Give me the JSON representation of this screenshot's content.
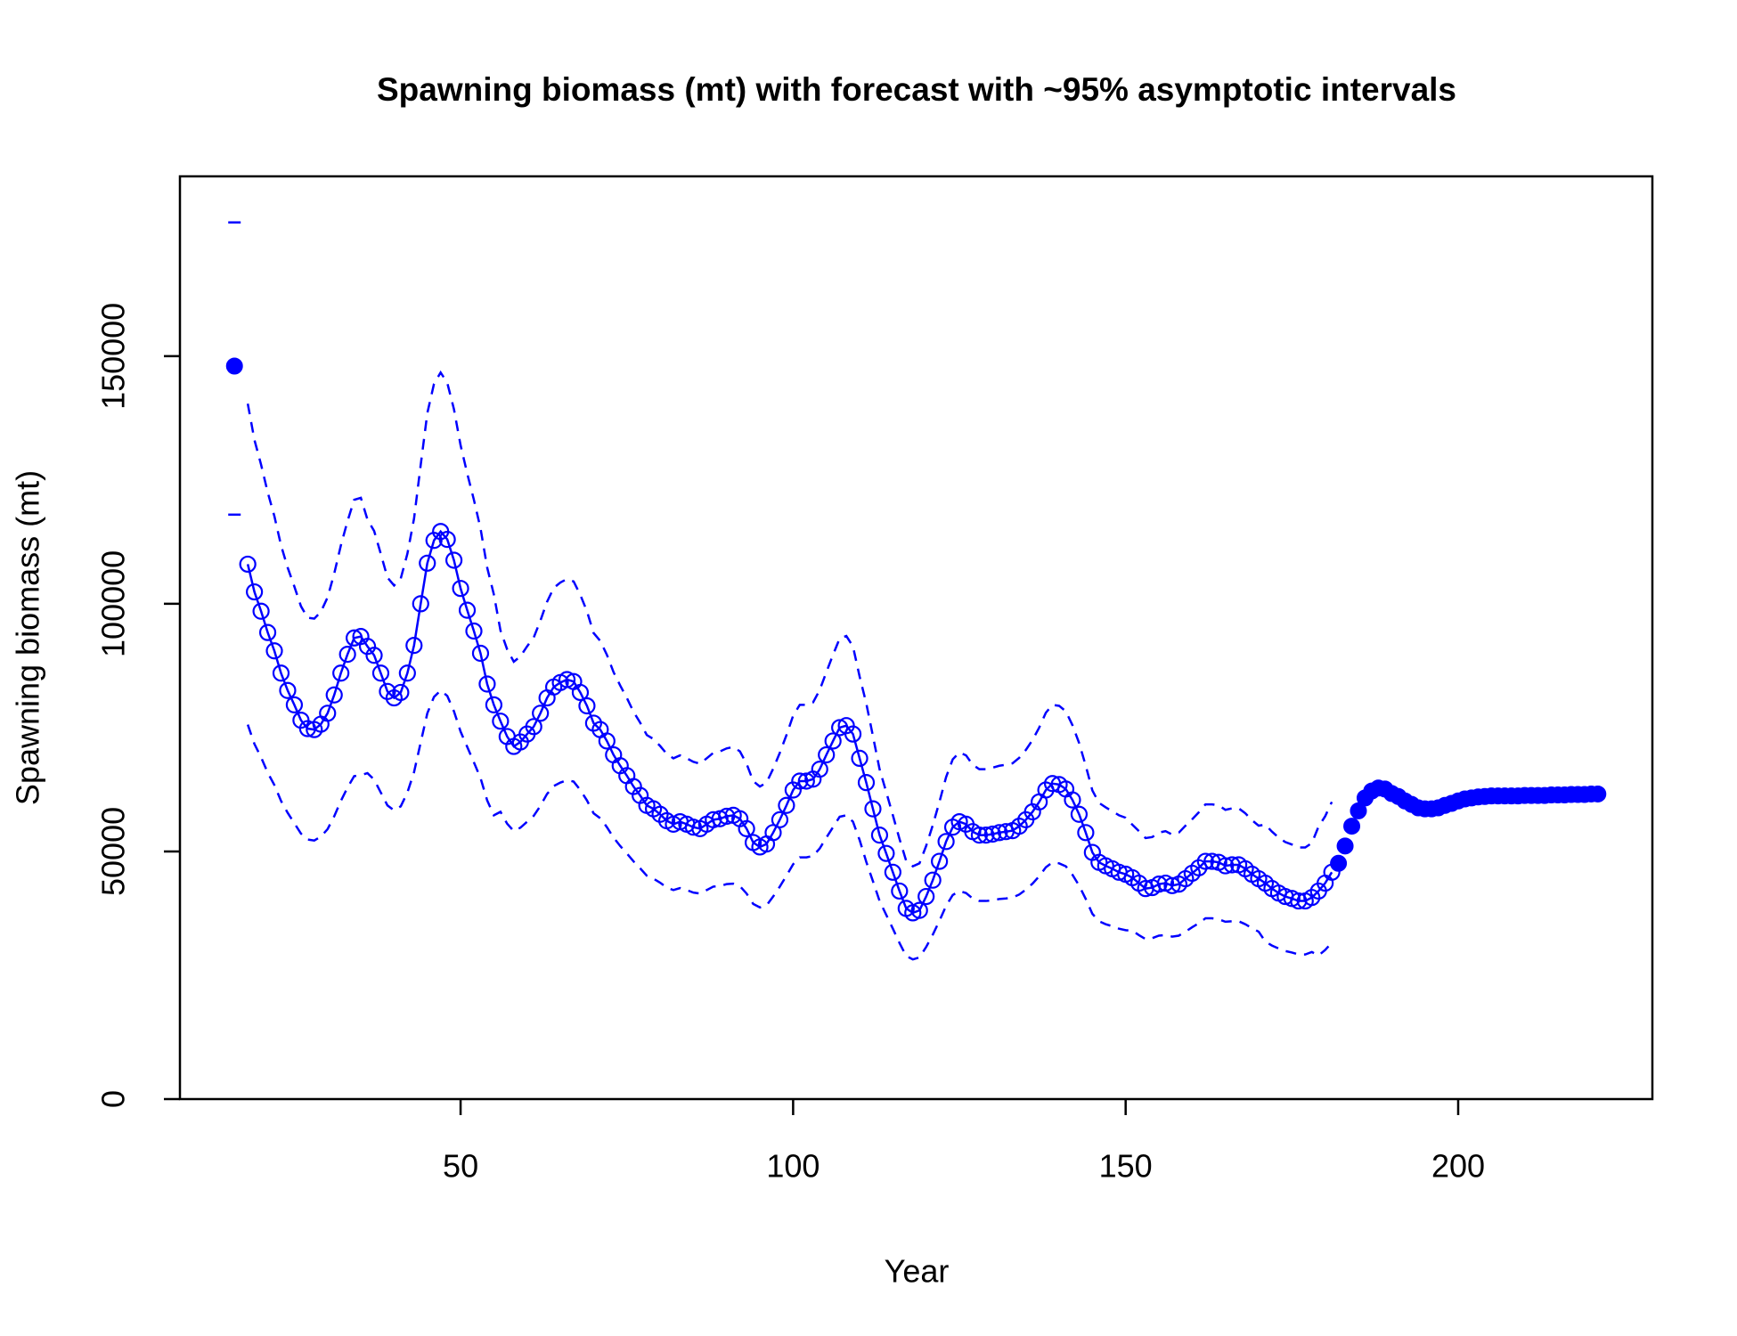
{
  "chart_data": {
    "type": "line",
    "title": "Spawning biomass (mt) with forecast with ~95% asymptotic intervals",
    "xlabel": "Year",
    "ylabel": "Spawning biomass (mt)",
    "xlim": [
      7.8,
      229.2
    ],
    "ylim": [
      0,
      186300
    ],
    "xticks": [
      50,
      100,
      150,
      200
    ],
    "yticks": [
      0,
      50000,
      100000,
      150000
    ],
    "series": [
      {
        "color": "#0000ff",
        "marker": "filled",
        "x": [
          16
        ],
        "values": [
          148000
        ],
        "upper": [
          177000
        ],
        "lower": [
          118000
        ]
      },
      {
        "color": "#0000ff",
        "marker": "open",
        "line": true,
        "x": [
          18,
          19,
          20,
          21,
          22,
          23,
          24,
          25,
          26,
          27,
          28,
          29,
          30,
          31,
          32,
          33,
          34,
          35,
          36,
          37,
          38,
          39,
          40,
          41,
          42,
          43,
          44,
          45,
          46,
          47,
          48,
          49,
          50,
          51,
          52,
          53,
          54,
          55,
          56,
          57,
          58,
          59,
          60,
          61,
          62,
          63,
          64,
          65,
          66,
          67,
          68,
          69,
          70,
          71,
          72,
          73,
          74,
          75,
          76,
          77,
          78,
          79,
          80,
          81,
          82,
          83,
          84,
          85,
          86,
          87,
          88,
          89,
          90,
          91,
          92,
          93,
          94,
          95,
          96,
          97,
          98,
          99,
          100,
          101,
          102,
          103,
          104,
          105,
          106,
          107,
          108,
          109,
          110,
          111,
          112,
          113,
          114,
          115,
          116,
          117,
          118,
          119,
          120,
          121,
          122,
          123,
          124,
          125,
          126,
          127,
          128,
          129,
          130,
          131,
          132,
          133,
          134,
          135,
          136,
          137,
          138,
          139,
          140,
          141,
          142,
          143,
          144,
          145,
          146,
          147,
          148,
          149,
          150,
          151,
          152,
          153,
          154,
          155,
          156,
          157,
          158,
          159,
          160,
          161,
          162,
          163,
          164,
          165,
          166,
          167,
          168,
          169,
          170,
          171,
          172,
          173,
          174,
          175,
          176,
          177,
          178,
          179,
          180,
          181
        ],
        "values": [
          108000,
          102400,
          98500,
          94200,
          90500,
          86000,
          82500,
          79600,
          76500,
          74800,
          74600,
          75700,
          77900,
          81600,
          86000,
          89800,
          93100,
          93400,
          91400,
          89600,
          86000,
          82300,
          81000,
          82100,
          86000,
          91600,
          100000,
          108200,
          112800,
          114600,
          113000,
          108800,
          103100,
          98700,
          94500,
          90000,
          83800,
          79600,
          76300,
          73200,
          71200,
          72100,
          73700,
          75200,
          77900,
          81000,
          83200,
          84100,
          84700,
          84300,
          82100,
          79400,
          75900,
          74600,
          72300,
          69500,
          67300,
          65300,
          63100,
          61300,
          59300,
          58600,
          57500,
          56200,
          55500,
          56000,
          55500,
          54900,
          54600,
          55500,
          56400,
          56600,
          57100,
          57300,
          56600,
          54600,
          51800,
          50900,
          51500,
          53800,
          56400,
          59300,
          62400,
          64200,
          64200,
          64600,
          66600,
          69500,
          72300,
          75000,
          75400,
          73700,
          68800,
          63900,
          58600,
          53300,
          49600,
          45800,
          42000,
          38500,
          37600,
          38100,
          40900,
          44200,
          48000,
          52000,
          54900,
          56000,
          55500,
          54000,
          53300,
          53300,
          53500,
          53800,
          54000,
          54200,
          55100,
          56400,
          58000,
          60000,
          62400,
          63700,
          63500,
          62600,
          60400,
          57500,
          53800,
          49800,
          47800,
          47100,
          46500,
          45800,
          45400,
          44700,
          43600,
          42500,
          42700,
          43400,
          43600,
          43100,
          43400,
          44500,
          45600,
          46700,
          48000,
          48000,
          47800,
          47100,
          47300,
          47300,
          46500,
          45400,
          44500,
          43600,
          42500,
          41600,
          40900,
          40500,
          40000,
          40000,
          40700,
          42000,
          43600,
          45800
        ],
        "upper": [
          140400,
          133100,
          128100,
          122500,
          117700,
          111800,
          107300,
          103500,
          99500,
          97200,
          97000,
          98400,
          101300,
          106100,
          111800,
          116700,
          121000,
          121400,
          117000,
          114700,
          110100,
          105300,
          103700,
          105100,
          110100,
          117200,
          128000,
          138500,
          144400,
          146700,
          144600,
          139300,
          132000,
          126300,
          121000,
          115200,
          107300,
          101900,
          94600,
          90800,
          88300,
          89400,
          91400,
          93200,
          96600,
          100400,
          103200,
          104300,
          105000,
          104500,
          101800,
          98500,
          94100,
          92500,
          89700,
          86200,
          83500,
          81000,
          78200,
          76000,
          73500,
          72700,
          71300,
          69700,
          68800,
          69400,
          68800,
          68100,
          67700,
          68800,
          69900,
          70200,
          70800,
          71100,
          70200,
          67700,
          64200,
          63100,
          63900,
          66700,
          69900,
          73500,
          77400,
          79600,
          79600,
          80100,
          82600,
          86200,
          89700,
          93000,
          93500,
          91400,
          85300,
          79900,
          73300,
          66600,
          62000,
          57300,
          52500,
          48100,
          47000,
          47600,
          51100,
          55300,
          60000,
          65000,
          68600,
          70000,
          69400,
          67500,
          66600,
          66600,
          66900,
          67300,
          67500,
          67800,
          68900,
          70500,
          72500,
          75000,
          78000,
          79600,
          79400,
          78300,
          75500,
          71900,
          67300,
          62300,
          59800,
          58900,
          58100,
          57300,
          56800,
          55400,
          54100,
          52700,
          52900,
          53800,
          54100,
          53400,
          53800,
          55200,
          56500,
          57900,
          59500,
          59500,
          59300,
          58400,
          58700,
          58700,
          57700,
          56300,
          55200,
          55400,
          54000,
          52800,
          51900,
          51400,
          50800,
          50800,
          51700,
          55000,
          57100,
          60000
        ],
        "lower": [
          75600,
          71700,
          69000,
          65900,
          63400,
          60200,
          57800,
          55700,
          53600,
          52400,
          52200,
          53000,
          54500,
          57100,
          60200,
          62900,
          65200,
          65400,
          65800,
          64500,
          61900,
          59300,
          58300,
          59100,
          61900,
          66000,
          72000,
          77900,
          81200,
          82500,
          81400,
          78300,
          74200,
          71100,
          68000,
          64800,
          60300,
          57300,
          58000,
          55600,
          54100,
          54800,
          56000,
          57200,
          59200,
          61600,
          63200,
          63900,
          64400,
          64100,
          62400,
          60300,
          57700,
          56700,
          54900,
          52800,
          51100,
          49600,
          48000,
          46600,
          45100,
          44500,
          43700,
          42700,
          42200,
          42600,
          42200,
          41700,
          41500,
          42200,
          42900,
          43000,
          43400,
          43500,
          43000,
          41500,
          39400,
          38700,
          39100,
          40900,
          42900,
          45100,
          47400,
          48800,
          48800,
          49100,
          50600,
          52800,
          54900,
          57000,
          57300,
          56000,
          52300,
          47900,
          44000,
          40000,
          37200,
          34400,
          31500,
          28900,
          28200,
          28600,
          30700,
          33200,
          36000,
          39000,
          41200,
          42000,
          41600,
          40500,
          40000,
          40000,
          40100,
          40400,
          40500,
          40700,
          41300,
          42300,
          43500,
          45000,
          46800,
          47800,
          47600,
          47000,
          45300,
          43100,
          40400,
          37400,
          35900,
          35300,
          34900,
          34400,
          34100,
          34000,
          33100,
          32300,
          32500,
          33000,
          33100,
          32800,
          33000,
          33800,
          34700,
          35500,
          36500,
          36500,
          36300,
          35800,
          35900,
          35900,
          35300,
          34500,
          33800,
          31800,
          31000,
          30400,
          29900,
          29600,
          29200,
          29200,
          29700,
          29000,
          30100,
          31600
        ]
      },
      {
        "color": "#0000ff",
        "marker": "filled",
        "x": [
          182,
          183,
          184,
          185,
          186,
          187,
          188,
          189,
          190,
          191,
          192,
          193,
          194,
          195,
          196,
          197,
          198,
          199,
          200,
          201,
          202,
          203,
          204,
          205,
          206,
          207,
          208,
          209,
          210,
          211,
          212,
          213,
          214,
          215,
          216,
          217,
          218,
          219,
          220,
          221
        ],
        "values": [
          47600,
          51100,
          55100,
          58200,
          60800,
          62200,
          62800,
          62600,
          61700,
          61100,
          60200,
          59500,
          58800,
          58600,
          58600,
          58800,
          59300,
          59700,
          60200,
          60600,
          60800,
          61000,
          61100,
          61200,
          61200,
          61200,
          61200,
          61200,
          61300,
          61300,
          61300,
          61300,
          61400,
          61400,
          61400,
          61500,
          61500,
          61500,
          61600,
          61600
        ]
      }
    ]
  }
}
